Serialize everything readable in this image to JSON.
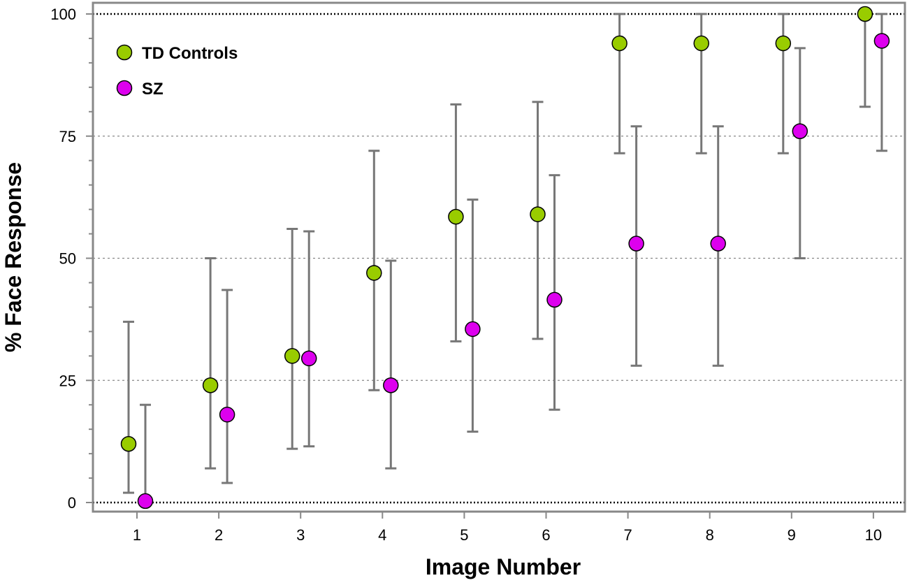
{
  "chart_data": {
    "type": "scatter",
    "title": "",
    "xlabel": "Image Number",
    "ylabel": "% Face Response",
    "x": [
      1,
      2,
      3,
      4,
      5,
      6,
      7,
      8,
      9,
      10
    ],
    "x_tick_labels": [
      "1",
      "2",
      "3",
      "4",
      "5",
      "6",
      "7",
      "8",
      "9",
      "10"
    ],
    "y_tick_labels": [
      "0",
      "25",
      "50",
      "75",
      "100"
    ],
    "y_ticks": [
      0,
      25,
      50,
      75,
      100
    ],
    "ylim": [
      -2,
      102
    ],
    "xlim": [
      0.5,
      10.5
    ],
    "grid": "horizontal-dotted",
    "legend_position": "top-left",
    "error_bars": true,
    "series": [
      {
        "name": "TD Controls",
        "color": "#99cc00",
        "values": [
          12,
          24,
          30,
          47,
          58.5,
          59,
          94,
          94,
          94,
          100
        ],
        "err_low": [
          2,
          7,
          11,
          23,
          33,
          33.5,
          71.5,
          71.5,
          71.5,
          81
        ],
        "err_high": [
          37,
          50,
          56,
          72,
          81.5,
          82,
          100,
          100,
          100,
          100
        ]
      },
      {
        "name": "SZ",
        "color": "#dd00ee",
        "values": [
          0.3,
          18,
          29.5,
          24,
          35.5,
          41.5,
          53,
          53,
          76,
          94.5
        ],
        "err_low": [
          0,
          4,
          11.5,
          7,
          14.5,
          19,
          28,
          28,
          50,
          72
        ],
        "err_high": [
          20,
          43.5,
          55.5,
          49.5,
          62,
          67,
          77,
          77,
          93,
          100
        ]
      }
    ]
  }
}
